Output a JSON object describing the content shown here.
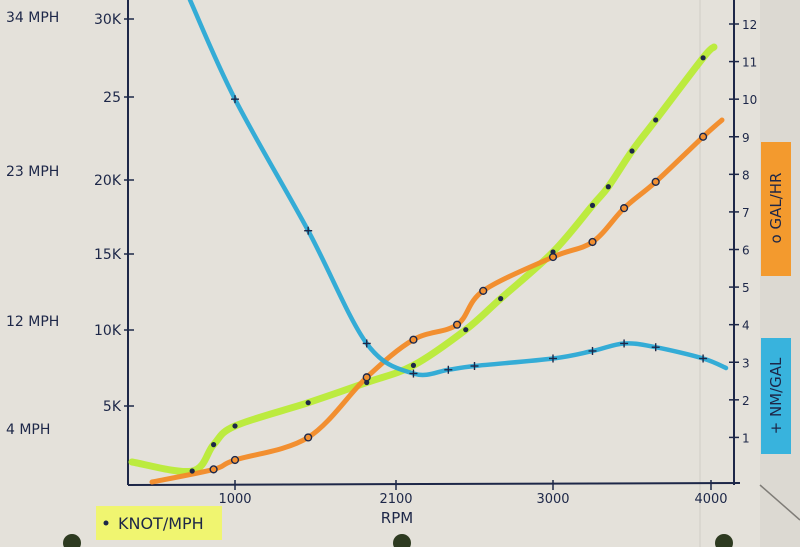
{
  "chart_data": {
    "type": "line",
    "xlabel": "RPM",
    "x_ticks": [
      "1000",
      "2100",
      "3000",
      "4000"
    ],
    "left_ticks": [
      "30K",
      "25",
      "20K",
      "15K",
      "10K",
      "5K"
    ],
    "left_ylim": [
      0,
      30
    ],
    "mph_labels": [
      "34 MPH",
      "23 MPH",
      "12 MPH",
      "4 MPH"
    ],
    "right_ticks": [
      "1",
      "2",
      "3",
      "4",
      "5",
      "6",
      "7",
      "8",
      "9",
      "10",
      "11",
      "12"
    ],
    "right_ylim": [
      0,
      12
    ],
    "series": [
      {
        "name": "KNOT/MPH",
        "marker": "dot",
        "axis": "left",
        "color": "#b7ec2e",
        "x": [
          600,
          800,
          1000,
          1500,
          1900,
          2200,
          2500,
          2700,
          3000,
          3250,
          3350,
          3500,
          3650,
          3950
        ],
        "values": [
          0.9,
          2.6,
          3.8,
          5.3,
          6.6,
          7.7,
          10.0,
          12.0,
          15.0,
          18.0,
          19.2,
          21.5,
          23.5,
          27.5
        ]
      },
      {
        "name": "GAL/HR",
        "marker": "circle",
        "axis": "right",
        "color": "#f28a27",
        "x": [
          800,
          1000,
          1500,
          1900,
          2200,
          2450,
          2600,
          3000,
          3250,
          3450,
          3650,
          3950
        ],
        "values": [
          0.15,
          0.4,
          1.0,
          2.6,
          3.6,
          4.0,
          4.9,
          5.8,
          6.2,
          7.1,
          7.8,
          9.0
        ]
      },
      {
        "name": "NM/GAL",
        "marker": "plus",
        "axis": "right",
        "color": "#2aa9d6",
        "x": [
          1000,
          1500,
          1900,
          2200,
          2400,
          2550,
          3000,
          3250,
          3450,
          3650,
          3950
        ],
        "values": [
          10.0,
          6.5,
          3.5,
          2.7,
          2.8,
          2.9,
          3.1,
          3.3,
          3.5,
          3.4,
          3.1
        ]
      }
    ],
    "legend": {
      "left_series_label": "KNOT/MPH",
      "right_top_label": "o GAL/HR",
      "right_bottom_label": "+ NM/GAL"
    },
    "grid": false
  }
}
